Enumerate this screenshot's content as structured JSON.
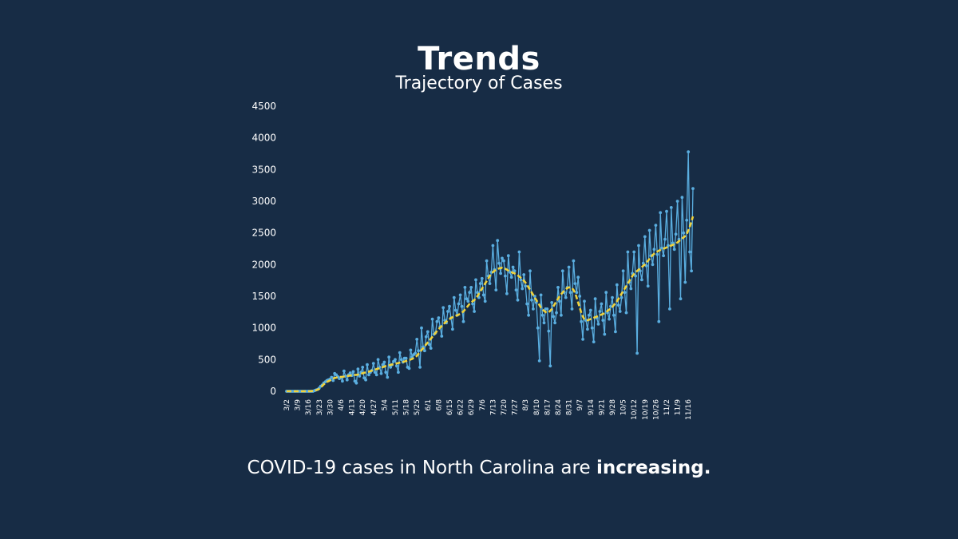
{
  "title": "Trends",
  "subtitle": "Trajectory of Cases",
  "caption": {
    "lead": "COVID-19 cases in North Carolina are ",
    "emphasis": "increasing."
  },
  "colors": {
    "background": "#172c45",
    "daily": "#5aaee0",
    "average": "#f0d23c",
    "text": "#ffffff"
  },
  "chart_data": {
    "type": "line",
    "ylim": [
      0,
      4500
    ],
    "yticks": [
      0,
      500,
      1000,
      1500,
      2000,
      2500,
      3000,
      3500,
      4000,
      4500
    ],
    "xtick_labels": [
      "3/2",
      "3/9",
      "3/16",
      "3/23",
      "3/30",
      "4/6",
      "4/13",
      "4/20",
      "4/27",
      "5/4",
      "5/11",
      "5/18",
      "5/25",
      "6/1",
      "6/8",
      "6/15",
      "6/22",
      "6/29",
      "7/6",
      "7/13",
      "7/20",
      "7/27",
      "8/3",
      "8/10",
      "8/17",
      "8/24",
      "8/31",
      "9/7",
      "9/14",
      "9/21",
      "9/28",
      "10/5",
      "10/12",
      "10/19",
      "10/26",
      "11/2",
      "11/9",
      "11/16"
    ],
    "series": [
      {
        "kind": "daily",
        "style": "solid line with dot markers",
        "weekly_values": [
          [
            0,
            0,
            0,
            0,
            0,
            0,
            0
          ],
          [
            0,
            0,
            0,
            0,
            0,
            0,
            0
          ],
          [
            0,
            0,
            0,
            0,
            10,
            20,
            30
          ],
          [
            50,
            80,
            100,
            130,
            150,
            170,
            180
          ],
          [
            190,
            220,
            170,
            280,
            260,
            230,
            200
          ],
          [
            220,
            160,
            320,
            240,
            180,
            260,
            290
          ],
          [
            250,
            310,
            160,
            130,
            350,
            240,
            300
          ],
          [
            380,
            210,
            180,
            420,
            260,
            300,
            330
          ],
          [
            440,
            300,
            260,
            500,
            380,
            280,
            420
          ],
          [
            460,
            300,
            220,
            540,
            380,
            420,
            470
          ],
          [
            500,
            400,
            300,
            610,
            500,
            460,
            520
          ],
          [
            520,
            380,
            360,
            650,
            540,
            580,
            600
          ],
          [
            820,
            640,
            380,
            1000,
            700,
            640,
            860
          ],
          [
            940,
            740,
            680,
            1140,
            900,
            920,
            1100
          ],
          [
            1160,
            1020,
            870,
            1320,
            1120,
            1080,
            1260
          ],
          [
            1340,
            1160,
            980,
            1480,
            1280,
            1200,
            1380
          ],
          [
            1520,
            1340,
            1100,
            1640,
            1460,
            1420,
            1560
          ],
          [
            1640,
            1380,
            1260,
            1760,
            1560,
            1480,
            1700
          ],
          [
            1780,
            1520,
            1420,
            2060,
            1820,
            1700,
            1880
          ],
          [
            2300,
            1920,
            1600,
            2380,
            2020,
            1860,
            2100
          ],
          [
            2060,
            1820,
            1540,
            2140,
            1880,
            1800,
            1960
          ],
          [
            1900,
            1600,
            1440,
            2200,
            1760,
            1620,
            1840
          ],
          [
            1660,
            1380,
            1200,
            1900,
            1440,
            1300,
            1500
          ],
          [
            1400,
            1000,
            480,
            1520,
            1200,
            1080,
            1300
          ],
          [
            1300,
            950,
            400,
            1400,
            1180,
            1080,
            1240
          ],
          [
            1640,
            1420,
            1200,
            1900,
            1560,
            1480,
            1640
          ],
          [
            1960,
            1560,
            1300,
            2060,
            1700,
            1560,
            1800
          ],
          [
            1500,
            1100,
            820,
            1420,
            1120,
            980,
            1200
          ],
          [
            1280,
            1000,
            780,
            1460,
            1160,
            1060,
            1260
          ],
          [
            1380,
            1120,
            900,
            1560,
            1240,
            1140,
            1340
          ],
          [
            1480,
            1200,
            940,
            1680,
            1360,
            1260,
            1480
          ],
          [
            1900,
            1560,
            1240,
            2200,
            1720,
            1620,
            1860
          ],
          [
            2200,
            1820,
            600,
            2300,
            1900,
            1760,
            2020
          ],
          [
            2440,
            1980,
            1660,
            2540,
            2140,
            2000,
            2240
          ],
          [
            2620,
            2160,
            1100,
            2820,
            2260,
            2140,
            2400
          ],
          [
            2840,
            2300,
            1300,
            2900,
            2340,
            2240,
            2480
          ],
          [
            3000,
            2400,
            1460,
            3060,
            2500,
            1720,
            2700
          ],
          [
            3780,
            2200,
            1900,
            3200
          ]
        ]
      },
      {
        "kind": "average",
        "style": "dashed line",
        "weekly_values": [
          [
            0,
            0,
            0,
            0,
            0,
            0,
            0
          ],
          [
            0,
            0,
            0,
            0,
            0,
            0,
            0
          ],
          [
            0,
            0,
            2,
            5,
            10,
            17,
            25
          ],
          [
            38,
            60,
            85,
            110,
            130,
            148,
            160
          ],
          [
            172,
            190,
            200,
            210,
            216,
            222,
            224
          ],
          [
            226,
            228,
            232,
            236,
            240,
            244,
            248
          ],
          [
            252,
            256,
            258,
            260,
            264,
            270,
            276
          ],
          [
            284,
            292,
            298,
            304,
            310,
            318,
            326
          ],
          [
            334,
            342,
            350,
            358,
            366,
            374,
            382
          ],
          [
            390,
            398,
            404,
            410,
            416,
            422,
            428
          ],
          [
            434,
            440,
            446,
            452,
            458,
            464,
            470
          ],
          [
            478,
            486,
            494,
            502,
            512,
            524,
            538
          ],
          [
            560,
            590,
            620,
            650,
            680,
            710,
            740
          ],
          [
            770,
            800,
            830,
            860,
            890,
            920,
            950
          ],
          [
            980,
            1005,
            1030,
            1055,
            1080,
            1100,
            1120
          ],
          [
            1138,
            1156,
            1170,
            1180,
            1190,
            1200,
            1210
          ],
          [
            1225,
            1240,
            1260,
            1290,
            1320,
            1350,
            1380
          ],
          [
            1400,
            1420,
            1440,
            1470,
            1500,
            1540,
            1580
          ],
          [
            1620,
            1660,
            1700,
            1740,
            1780,
            1820,
            1860
          ],
          [
            1880,
            1900,
            1920,
            1930,
            1940,
            1945,
            1950
          ],
          [
            1945,
            1935,
            1920,
            1905,
            1890,
            1880,
            1870
          ],
          [
            1860,
            1850,
            1830,
            1810,
            1790,
            1770,
            1745
          ],
          [
            1715,
            1680,
            1640,
            1600,
            1560,
            1520,
            1480
          ],
          [
            1440,
            1400,
            1360,
            1320,
            1290,
            1270,
            1250
          ],
          [
            1240,
            1250,
            1270,
            1300,
            1340,
            1380,
            1420
          ],
          [
            1460,
            1500,
            1530,
            1560,
            1590,
            1610,
            1630
          ],
          [
            1640,
            1640,
            1630,
            1600,
            1550,
            1480,
            1400
          ],
          [
            1320,
            1240,
            1180,
            1140,
            1120,
            1120,
            1130
          ],
          [
            1140,
            1150,
            1160,
            1170,
            1180,
            1190,
            1200
          ],
          [
            1210,
            1220,
            1235,
            1250,
            1270,
            1290,
            1310
          ],
          [
            1330,
            1360,
            1390,
            1420,
            1460,
            1500,
            1540
          ],
          [
            1580,
            1620,
            1660,
            1700,
            1740,
            1780,
            1820
          ],
          [
            1850,
            1880,
            1900,
            1920,
            1940,
            1960,
            1980
          ],
          [
            2000,
            2030,
            2060,
            2090,
            2120,
            2150,
            2170
          ],
          [
            2190,
            2205,
            2220,
            2230,
            2240,
            2250,
            2260
          ],
          [
            2270,
            2280,
            2290,
            2300,
            2310,
            2320,
            2335
          ],
          [
            2350,
            2370,
            2390,
            2410,
            2430,
            2450,
            2480
          ],
          [
            2540,
            2600,
            2680,
            2760
          ]
        ]
      }
    ]
  }
}
